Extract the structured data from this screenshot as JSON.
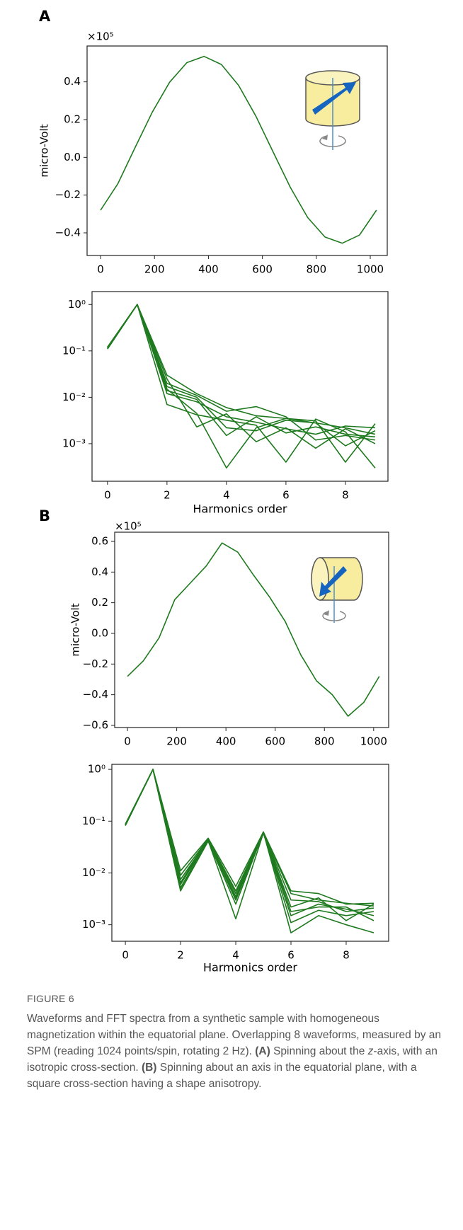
{
  "panels": [
    "A",
    "B"
  ],
  "caption": {
    "label": "FIGURE 6",
    "parts": [
      "Waveforms and FFT spectra from a synthetic sample with homogeneous magnetization within the equatorial plane. Overlapping 8 waveforms, measured by an SPM (reading 1024 points/spin, rotating 2 Hz). ",
      "(A)",
      " Spinning about the ",
      "z",
      "-axis, with an isotropic cross-section. ",
      "(B)",
      " Spinning about an axis in the equatorial plane, with a square cross-section having a shape anisotropy."
    ]
  },
  "chart_data": [
    {
      "type": "line",
      "ylabel": "micro-Volt",
      "offset_label": "×10⁵",
      "x": [
        0,
        64,
        128,
        192,
        256,
        320,
        384,
        448,
        512,
        576,
        640,
        704,
        768,
        832,
        896,
        960,
        1023
      ],
      "series": [
        {
          "color": "#1f7a1f",
          "values": [
            -0.28,
            -0.14,
            0.052,
            0.24,
            0.398,
            0.502,
            0.535,
            0.492,
            0.381,
            0.218,
            0.028,
            -0.16,
            -0.319,
            -0.422,
            -0.455,
            -0.412,
            -0.28
          ]
        }
      ],
      "xlim": [
        -50,
        1063
      ],
      "ylim": [
        -0.52,
        0.59
      ],
      "xticks": [
        0,
        200,
        400,
        600,
        800,
        1000
      ],
      "yticks": [
        {
          "value": -0.4,
          "label": "−0.4"
        },
        {
          "value": -0.2,
          "label": "−0.2"
        },
        {
          "value": 0,
          "label": "0.0"
        },
        0.2,
        0.4
      ]
    },
    {
      "type": "line",
      "xlabel": "Harmonics order",
      "yscale": "log",
      "x": [
        0,
        1,
        2,
        3,
        4,
        5,
        6,
        7,
        8,
        9
      ],
      "series": [
        {
          "color": "#1f7a1f",
          "values": [
            0.115,
            1,
            0.03,
            0.012,
            0.006,
            0.004,
            0.0035,
            0.0028,
            0.0022,
            0.0016
          ]
        },
        {
          "color": "#1f7a1f",
          "values": [
            0.12,
            1,
            0.02,
            0.011,
            0.005,
            0.0063,
            0.0038,
            0.0012,
            0.0015,
            0.0012
          ]
        },
        {
          "color": "#1f7a1f",
          "values": [
            0.11,
            1,
            0.015,
            0.0045,
            0.0003,
            0.0022,
            0.0035,
            0.0031,
            0.0004,
            0.0027
          ]
        },
        {
          "color": "#1f7a1f",
          "values": [
            0.115,
            1,
            0.007,
            0.0042,
            0.0032,
            0.0025,
            0.0004,
            0.0034,
            0.0018,
            0.0003
          ]
        },
        {
          "color": "#1f7a1f",
          "values": [
            0.12,
            1,
            0.025,
            0.0023,
            0.0044,
            0.0011,
            0.0022,
            0.0008,
            0.0021,
            0.001
          ]
        },
        {
          "color": "#1f7a1f",
          "values": [
            0.11,
            1,
            0.014,
            0.009,
            0.0015,
            0.0038,
            0.0017,
            0.0023,
            0.0016,
            0.0014
          ]
        },
        {
          "color": "#1f7a1f",
          "values": [
            0.115,
            1,
            0.017,
            0.01,
            0.0022,
            0.0019,
            0.0032,
            0.0028,
            0.0009,
            0.0019
          ]
        },
        {
          "color": "#1f7a1f",
          "values": [
            0.12,
            1,
            0.012,
            0.008,
            0.0038,
            0.0029,
            0.0021,
            0.0016,
            0.0024,
            0.0022
          ]
        }
      ],
      "xlim": [
        -0.52,
        9.43
      ],
      "ylim": [
        0.000155,
        1.9
      ],
      "xticks": [
        0,
        2,
        4,
        6,
        8
      ],
      "yticks": [
        {
          "value": 0.001,
          "label": "10⁻³"
        },
        {
          "value": 0.01,
          "label": "10⁻²"
        },
        {
          "value": 0.1,
          "label": "10⁻¹"
        },
        {
          "value": 1,
          "label": "10⁰"
        }
      ]
    },
    {
      "type": "line",
      "ylabel": "micro-Volt",
      "offset_label": "×10⁵",
      "x": [
        0,
        64,
        128,
        192,
        256,
        320,
        384,
        448,
        512,
        576,
        640,
        704,
        768,
        832,
        896,
        960,
        1023
      ],
      "series": [
        {
          "color": "#1f7a1f",
          "values": [
            -0.28,
            -0.18,
            -0.03,
            0.22,
            0.33,
            0.44,
            0.59,
            0.53,
            0.38,
            0.24,
            0.08,
            -0.14,
            -0.31,
            -0.4,
            -0.54,
            -0.45,
            -0.28
          ]
        }
      ],
      "xlim": [
        -52,
        1061
      ],
      "ylim": [
        -0.614,
        0.66
      ],
      "xticks": [
        0,
        200,
        400,
        600,
        800,
        1000
      ],
      "yticks": [
        {
          "value": -0.6,
          "label": "−0.6"
        },
        {
          "value": -0.4,
          "label": "−0.4"
        },
        {
          "value": -0.2,
          "label": "−0.2"
        },
        {
          "value": 0,
          "label": "0.0"
        },
        0.2,
        0.4,
        0.6
      ]
    },
    {
      "type": "line",
      "xlabel": "Harmonics order",
      "yscale": "log",
      "x": [
        0,
        1,
        2,
        3,
        4,
        5,
        6,
        7,
        8,
        9
      ],
      "series": [
        {
          "color": "#1f7a1f",
          "values": [
            0.085,
            1,
            0.011,
            0.047,
            0.0055,
            0.062,
            0.0045,
            0.004,
            0.0025,
            0.0026
          ]
        },
        {
          "color": "#1f7a1f",
          "values": [
            0.088,
            1,
            0.009,
            0.045,
            0.0045,
            0.061,
            0.004,
            0.003,
            0.0026,
            0.0023
          ]
        },
        {
          "color": "#1f7a1f",
          "values": [
            0.082,
            1,
            0.0075,
            0.044,
            0.0035,
            0.06,
            0.003,
            0.0028,
            0.0018,
            0.0021
          ]
        },
        {
          "color": "#1f7a1f",
          "values": [
            0.086,
            1,
            0.006,
            0.043,
            0.003,
            0.06,
            0.0022,
            0.0033,
            0.0012,
            0.0025
          ]
        },
        {
          "color": "#1f7a1f",
          "values": [
            0.084,
            1,
            0.0052,
            0.042,
            0.0013,
            0.059,
            0.0015,
            0.0025,
            0.002,
            0.0015
          ]
        },
        {
          "color": "#1f7a1f",
          "values": [
            0.087,
            1,
            0.0045,
            0.041,
            0.0025,
            0.061,
            0.0007,
            0.0015,
            0.001,
            0.0007
          ]
        },
        {
          "color": "#1f7a1f",
          "values": [
            0.085,
            1,
            0.0065,
            0.046,
            0.004,
            0.06,
            0.0011,
            0.0019,
            0.0015,
            0.0018
          ]
        },
        {
          "color": "#1f7a1f",
          "values": [
            0.083,
            1,
            0.005,
            0.043,
            0.0033,
            0.062,
            0.0018,
            0.0022,
            0.0022,
            0.0012
          ]
        }
      ],
      "xlim": [
        -0.49,
        9.54
      ],
      "ylim": [
        0.00048,
        1.25
      ],
      "xticks": [
        0,
        2,
        4,
        6,
        8
      ],
      "yticks": [
        {
          "value": 0.001,
          "label": "10⁻³"
        },
        {
          "value": 0.01,
          "label": "10⁻²"
        },
        {
          "value": 0.1,
          "label": "10⁻¹"
        },
        {
          "value": 1,
          "label": "10⁰"
        }
      ]
    }
  ]
}
